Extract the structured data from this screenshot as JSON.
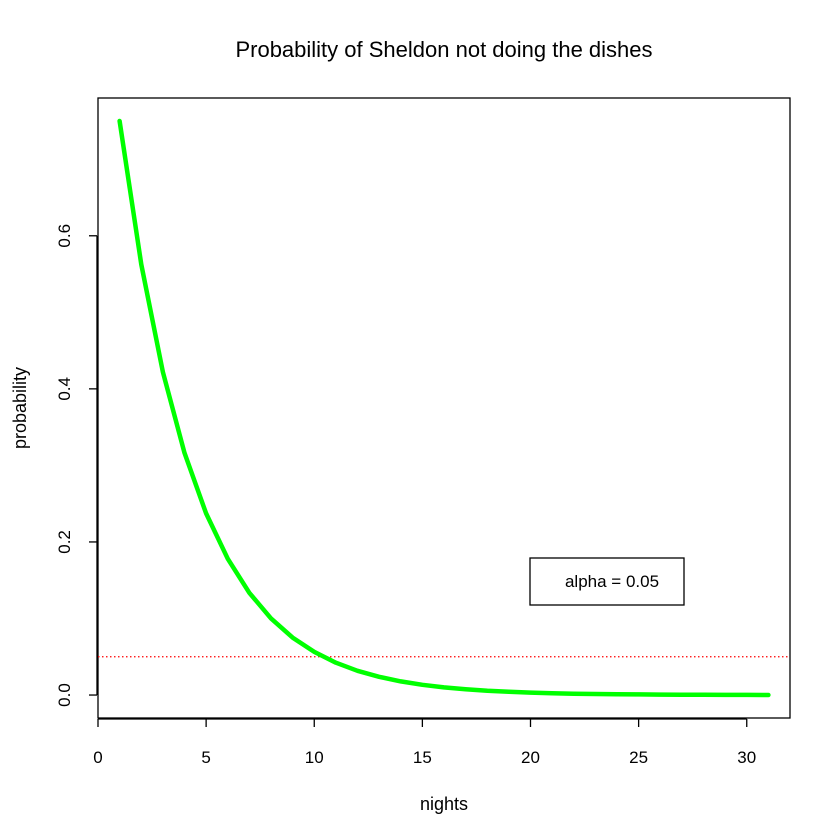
{
  "chart_data": {
    "type": "line",
    "title": "Probability of Sheldon not doing the dishes",
    "xlabel": "nights",
    "ylabel": "probability",
    "xlim": [
      0,
      32
    ],
    "ylim": [
      -0.03,
      0.78
    ],
    "x_ticks": [
      "0",
      "5",
      "10",
      "15",
      "20",
      "25",
      "30"
    ],
    "y_ticks": [
      "0.0",
      "0.2",
      "0.4",
      "0.6"
    ],
    "grid": false,
    "series": [
      {
        "color": "#00ff00",
        "x": [
          1,
          2,
          3,
          4,
          5,
          6,
          7,
          8,
          9,
          10,
          11,
          12,
          13,
          14,
          15,
          16,
          17,
          18,
          19,
          20,
          21,
          22,
          23,
          24,
          25,
          26,
          27,
          28,
          29,
          30,
          31
        ],
        "values": [
          0.75,
          0.5625,
          0.4219,
          0.3164,
          0.2373,
          0.178,
          0.1335,
          0.1001,
          0.0751,
          0.0563,
          0.0422,
          0.0317,
          0.0238,
          0.0178,
          0.0134,
          0.01,
          0.0075,
          0.0056,
          0.0042,
          0.0032,
          0.0024,
          0.0018,
          0.0013,
          0.001,
          0.0008,
          0.0006,
          0.0004,
          0.0003,
          0.0002,
          0.0002,
          0.0001
        ]
      }
    ],
    "reference_line": {
      "y": 0.05,
      "color": "#ff0000",
      "style": "dotted"
    },
    "legend": {
      "text": "alpha = 0.05",
      "placement": "bottom-right"
    }
  }
}
